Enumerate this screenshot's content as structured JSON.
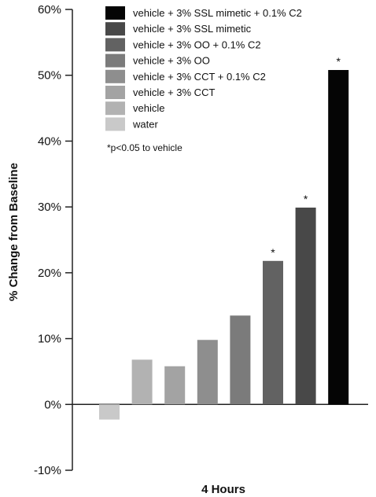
{
  "chart_data": {
    "type": "bar",
    "xlabel": "4 Hours",
    "ylabel": "% Change from Baseline",
    "ylim": [
      -10,
      60
    ],
    "yticks": [
      -10,
      0,
      10,
      20,
      30,
      40,
      50,
      60
    ],
    "ytick_labels": [
      "-10%",
      "0%",
      "10%",
      "20%",
      "30%",
      "40%",
      "50%",
      "60%"
    ],
    "grid": false,
    "legend_position": "top",
    "footnote": "*p<0.05 to vehicle",
    "series": [
      {
        "name": "water",
        "value": -2.3,
        "color": "#c9c9c9",
        "significant": false
      },
      {
        "name": "vehicle",
        "value": 6.8,
        "color": "#b2b2b2",
        "significant": false
      },
      {
        "name": "vehicle + 3% CCT",
        "value": 5.8,
        "color": "#a3a3a3",
        "significant": false
      },
      {
        "name": "vehicle + 3% CCT + 0.1% C2",
        "value": 9.8,
        "color": "#8e8e8e",
        "significant": false
      },
      {
        "name": "vehicle + 3% OO",
        "value": 13.5,
        "color": "#7b7b7b",
        "significant": false
      },
      {
        "name": "vehicle + 3% OO + 0.1% C2",
        "value": 21.8,
        "color": "#626262",
        "significant": true
      },
      {
        "name": "vehicle + 3% SSL mimetic",
        "value": 29.9,
        "color": "#484848",
        "significant": true
      },
      {
        "name": "vehicle + 3% SSL mimetic + 0.1% C2",
        "value": 50.8,
        "color": "#050505",
        "significant": true
      }
    ],
    "legend_order": [
      7,
      6,
      5,
      4,
      3,
      2,
      1,
      0
    ]
  }
}
